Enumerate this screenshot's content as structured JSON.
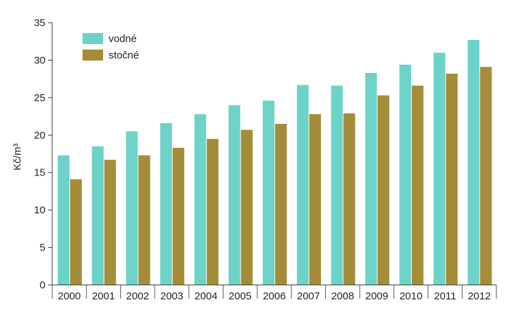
{
  "chart_data": {
    "type": "bar",
    "categories": [
      "2000",
      "2001",
      "2002",
      "2003",
      "2004",
      "2005",
      "2006",
      "2007",
      "2008",
      "2009",
      "2010",
      "2011",
      "2012"
    ],
    "series": [
      {
        "name": "vodné",
        "color": "#6dd3c8",
        "values": [
          17.3,
          18.5,
          20.5,
          21.6,
          22.8,
          24.0,
          24.6,
          26.7,
          26.6,
          28.3,
          29.4,
          31.0,
          32.7
        ]
      },
      {
        "name": "stočné",
        "color": "#a48c38",
        "values": [
          14.1,
          16.7,
          17.3,
          18.3,
          19.5,
          20.7,
          21.5,
          22.8,
          22.9,
          25.3,
          26.6,
          28.2,
          29.1
        ]
      }
    ],
    "ylabel": "Kč/m³",
    "ylim": [
      0,
      35
    ],
    "yticks": [
      "0",
      "5",
      "10",
      "15",
      "20",
      "25",
      "30",
      "35"
    ],
    "grid": false,
    "legend": "top-left"
  }
}
